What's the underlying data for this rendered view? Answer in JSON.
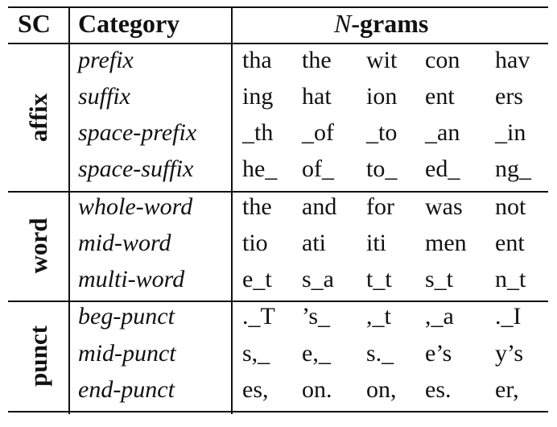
{
  "header": {
    "sc": "SC",
    "category": "Category",
    "ngrams_n": "N",
    "ngrams_rest": "-grams"
  },
  "groups": [
    {
      "sc": "affix",
      "rows": [
        {
          "category": "prefix",
          "ngrams": [
            "tha",
            "the",
            "wit",
            "con",
            "hav"
          ]
        },
        {
          "category": "suffix",
          "ngrams": [
            "ing",
            "hat",
            "ion",
            "ent",
            "ers"
          ]
        },
        {
          "category": "space-prefix",
          "ngrams": [
            "_th",
            "_of",
            "_to",
            "_an",
            "_in"
          ]
        },
        {
          "category": "space-suffix",
          "ngrams": [
            "he_",
            "of_",
            "to_",
            "ed_",
            "ng_"
          ]
        }
      ]
    },
    {
      "sc": "word",
      "rows": [
        {
          "category": "whole-word",
          "ngrams": [
            "the",
            "and",
            "for",
            "was",
            "not"
          ]
        },
        {
          "category": "mid-word",
          "ngrams": [
            "tio",
            "ati",
            "iti",
            "men",
            "ent"
          ]
        },
        {
          "category": "multi-word",
          "ngrams": [
            "e_t",
            "s_a",
            "t_t",
            "s_t",
            "n_t"
          ]
        }
      ]
    },
    {
      "sc": "punct",
      "rows": [
        {
          "category": "beg-punct",
          "ngrams": [
            "._T",
            "’s_",
            ",_t",
            ",_a",
            "._I"
          ]
        },
        {
          "category": "mid-punct",
          "ngrams": [
            "s,_",
            "e,_",
            "s._",
            "e’s",
            "y’s"
          ]
        },
        {
          "category": "end-punct",
          "ngrams": [
            "es,",
            "on.",
            "on,",
            "es.",
            "er,"
          ]
        }
      ]
    }
  ]
}
